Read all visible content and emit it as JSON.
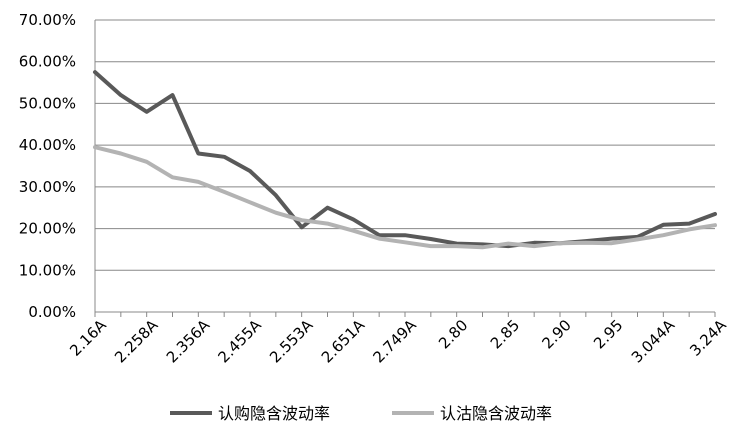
{
  "chart_data": {
    "type": "line",
    "title": "",
    "xlabel": "",
    "ylabel": "",
    "ylim": [
      0,
      70
    ],
    "y_tick_values": [
      0,
      10,
      20,
      30,
      40,
      50,
      60,
      70
    ],
    "y_tick_labels": [
      "0.00%",
      "10.00%",
      "20.00%",
      "30.00%",
      "40.00%",
      "50.00%",
      "60.00%",
      "70.00%"
    ],
    "grid": "horizontal",
    "legend_position": "bottom",
    "x_tick_labels": [
      "2.16A",
      "2.258A",
      "2.356A",
      "2.455A",
      "2.553A",
      "2.651A",
      "2.749A",
      "2.80",
      "2.85",
      "2.90",
      "2.95",
      "3.044A",
      "3.24A"
    ],
    "x_tick_label_positions": [
      0,
      2,
      4,
      6,
      8,
      10,
      12,
      14,
      16,
      18,
      20,
      22,
      24
    ],
    "num_points": 25,
    "series": [
      {
        "name": "认购隐含波动率",
        "color": "#595959",
        "values": [
          57.5,
          52.0,
          48.0,
          52.0,
          38.0,
          37.2,
          33.8,
          28.0,
          20.3,
          25.0,
          22.2,
          18.4,
          18.4,
          17.5,
          16.4,
          16.2,
          15.8,
          16.6,
          16.5,
          17.0,
          17.6,
          18.0,
          20.9,
          21.2,
          23.5
        ]
      },
      {
        "name": "认沽隐含波动率",
        "color": "#b3b3b3",
        "values": [
          39.5,
          38.0,
          36.0,
          32.3,
          31.2,
          28.8,
          26.3,
          23.8,
          22.0,
          21.2,
          19.5,
          17.6,
          16.7,
          15.8,
          15.8,
          15.5,
          16.4,
          15.8,
          16.5,
          16.6,
          16.5,
          17.4,
          18.4,
          19.8,
          20.8
        ]
      }
    ]
  }
}
